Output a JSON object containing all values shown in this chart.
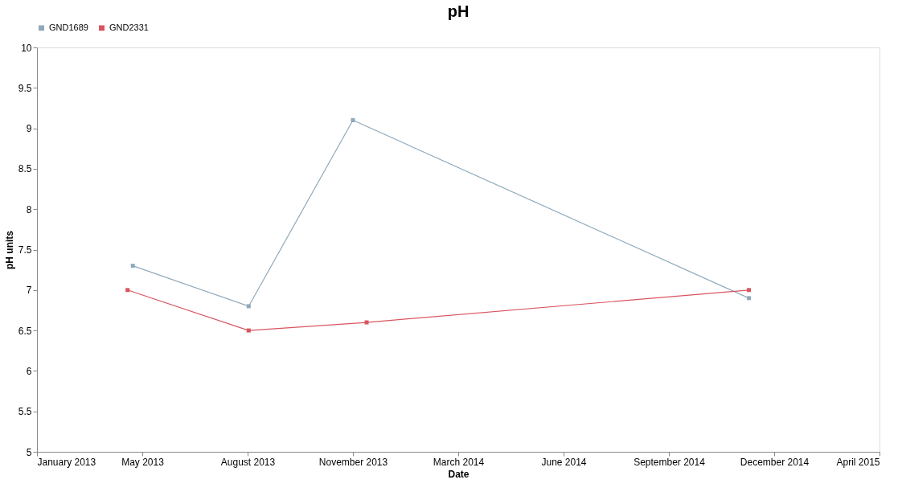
{
  "chart_data": {
    "type": "line",
    "title": "pH",
    "xlabel": "Date",
    "ylabel": "pH units",
    "xlim": [
      "2013-01-28",
      "2015-04-08"
    ],
    "xticks": [
      {
        "value": "2013-01-28",
        "label": "January 2013"
      },
      {
        "value": "2013-05-08",
        "label": "May 2013"
      },
      {
        "value": "2013-08-16",
        "label": "August 2013"
      },
      {
        "value": "2013-11-24",
        "label": "November 2013"
      },
      {
        "value": "2014-03-04",
        "label": "March 2014"
      },
      {
        "value": "2014-06-12",
        "label": "June 2014"
      },
      {
        "value": "2014-09-20",
        "label": "September 2014"
      },
      {
        "value": "2014-12-29",
        "label": "December 2014"
      },
      {
        "value": "2015-04-08",
        "label": "April 2015"
      }
    ],
    "ylim": [
      5,
      10
    ],
    "yticks": [
      5,
      5.5,
      6,
      6.5,
      7,
      7.5,
      8,
      8.5,
      9,
      9.5,
      10
    ],
    "series": [
      {
        "name": "GND1689",
        "color": "#8fa9bb",
        "x": [
          "2013-04-29",
          "2013-08-17",
          "2013-11-24",
          "2014-12-05"
        ],
        "values": [
          7.3,
          6.8,
          9.1,
          6.9
        ]
      },
      {
        "name": "GND2331",
        "color": "#d9545f",
        "x": [
          "2013-04-24",
          "2013-08-17",
          "2013-12-07",
          "2014-12-05"
        ],
        "values": [
          7.0,
          6.5,
          6.6,
          7.0
        ]
      }
    ],
    "marker": "square",
    "legend": "top",
    "grid": false
  }
}
